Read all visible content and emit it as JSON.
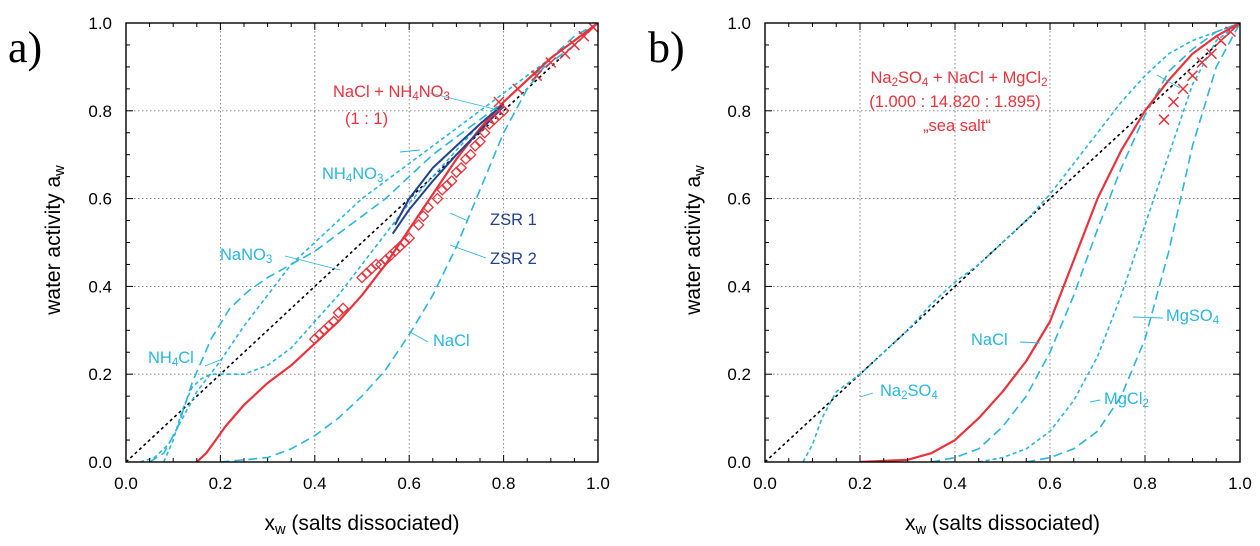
{
  "chart_data": [
    {
      "type": "line",
      "panel_label": "a)",
      "xlabel": {
        "main": "x",
        "sub": "w",
        "rest": "  (salts dissociated)"
      },
      "ylabel": {
        "main": "water activity a",
        "sub": "w"
      },
      "xlim": [
        0,
        1
      ],
      "ylim": [
        0,
        1
      ],
      "xticks": [
        "0.0",
        "0.2",
        "0.4",
        "0.6",
        "0.8",
        "1.0"
      ],
      "yticks": [
        "0.0",
        "0.2",
        "0.4",
        "0.6",
        "0.8",
        "1.0"
      ],
      "grid": true,
      "colors": {
        "mixture": "#e8323c",
        "single": "#29b6e0",
        "zsr": "#24418f",
        "ideal": "#000000"
      },
      "series": [
        {
          "kind": "ideal",
          "style": "dotted",
          "x": [
            0,
            1
          ],
          "y": [
            0,
            1
          ]
        },
        {
          "kind": "single",
          "style": "dash",
          "x": [
            0.03,
            0.06,
            0.09,
            0.12,
            0.15,
            0.2,
            0.25,
            0.3,
            0.35,
            0.4,
            0.45,
            0.5,
            0.55,
            0.6,
            0.65,
            0.7,
            0.75,
            0.8,
            0.85,
            0.9,
            0.95,
            1.0
          ],
          "y": [
            0,
            0.01,
            0.04,
            0.1,
            0.16,
            0.23,
            0.31,
            0.38,
            0.45,
            0.5,
            0.55,
            0.6,
            0.64,
            0.68,
            0.72,
            0.76,
            0.8,
            0.84,
            0.88,
            0.92,
            0.96,
            1.0
          ]
        },
        {
          "kind": "single",
          "style": "dash",
          "x": [
            0.05,
            0.08,
            0.11,
            0.14,
            0.18,
            0.22,
            0.26,
            0.3,
            0.35,
            0.4,
            0.45,
            0.5,
            0.55,
            0.6,
            0.65,
            0.7,
            0.75,
            0.8,
            0.85,
            0.9,
            0.95,
            1.0
          ],
          "y": [
            0,
            0.02,
            0.08,
            0.18,
            0.28,
            0.35,
            0.39,
            0.42,
            0.45,
            0.48,
            0.52,
            0.56,
            0.6,
            0.65,
            0.7,
            0.74,
            0.78,
            0.82,
            0.87,
            0.91,
            0.95,
            1.0
          ]
        },
        {
          "kind": "single",
          "style": "dash",
          "x": [
            0.08,
            0.1,
            0.12,
            0.14,
            0.16,
            0.18,
            0.2,
            0.25,
            0.3,
            0.35,
            0.4,
            0.45,
            0.5,
            0.55,
            0.6,
            0.65,
            0.7,
            0.75,
            0.8,
            0.85,
            0.9,
            0.95,
            1.0
          ],
          "y": [
            0,
            0.05,
            0.12,
            0.17,
            0.19,
            0.2,
            0.2,
            0.2,
            0.22,
            0.26,
            0.32,
            0.38,
            0.45,
            0.52,
            0.59,
            0.65,
            0.71,
            0.77,
            0.82,
            0.87,
            0.92,
            0.96,
            1.0
          ]
        },
        {
          "kind": "single",
          "style": "dash",
          "x": [
            0.2,
            0.3,
            0.35,
            0.4,
            0.45,
            0.5,
            0.55,
            0.6,
            0.65,
            0.7,
            0.75,
            0.8,
            0.85,
            0.9,
            0.95,
            1.0
          ],
          "y": [
            0,
            0.01,
            0.03,
            0.06,
            0.1,
            0.15,
            0.21,
            0.29,
            0.38,
            0.49,
            0.62,
            0.75,
            0.85,
            0.92,
            0.97,
            1.0
          ]
        },
        {
          "kind": "mixture",
          "style": "solid",
          "x": [
            0.15,
            0.17,
            0.19,
            0.21,
            0.25,
            0.3,
            0.35,
            0.4,
            0.45,
            0.5,
            0.55,
            0.6,
            0.65,
            0.7,
            0.75,
            0.8,
            0.85,
            0.9,
            0.95,
            1.0
          ],
          "y": [
            0,
            0.02,
            0.05,
            0.08,
            0.13,
            0.18,
            0.22,
            0.27,
            0.32,
            0.38,
            0.45,
            0.53,
            0.61,
            0.69,
            0.76,
            0.82,
            0.87,
            0.92,
            0.96,
            1.0
          ]
        },
        {
          "kind": "zsr",
          "style": "solid",
          "x": [
            0.565,
            0.6,
            0.65,
            0.7,
            0.75,
            0.8
          ],
          "y": [
            0.52,
            0.575,
            0.64,
            0.7,
            0.755,
            0.81
          ]
        },
        {
          "kind": "zsr",
          "style": "solid",
          "x": [
            0.57,
            0.6,
            0.65,
            0.7,
            0.75,
            0.8
          ],
          "y": [
            0.54,
            0.6,
            0.67,
            0.72,
            0.77,
            0.815
          ]
        }
      ],
      "markers": [
        {
          "kind": "diamond",
          "color": "#e8323c",
          "x": [
            0.4,
            0.41,
            0.42,
            0.43,
            0.44,
            0.45,
            0.46,
            0.5,
            0.51,
            0.52,
            0.53,
            0.54,
            0.55,
            0.56,
            0.57,
            0.58,
            0.59,
            0.6,
            0.62,
            0.63,
            0.64,
            0.66,
            0.67,
            0.68,
            0.69,
            0.7,
            0.71,
            0.72,
            0.73,
            0.74,
            0.75,
            0.76,
            0.77,
            0.78,
            0.79,
            0.8
          ],
          "y": [
            0.28,
            0.29,
            0.3,
            0.31,
            0.32,
            0.34,
            0.35,
            0.42,
            0.43,
            0.44,
            0.45,
            0.45,
            0.46,
            0.47,
            0.48,
            0.49,
            0.5,
            0.51,
            0.54,
            0.56,
            0.58,
            0.6,
            0.62,
            0.63,
            0.64,
            0.66,
            0.67,
            0.69,
            0.7,
            0.72,
            0.73,
            0.75,
            0.77,
            0.78,
            0.79,
            0.8
          ]
        },
        {
          "kind": "cross",
          "color": "#e8323c",
          "x": [
            0.79,
            0.83,
            0.87,
            0.9,
            0.93,
            0.95,
            0.97,
            0.99
          ],
          "y": [
            0.82,
            0.85,
            0.88,
            0.91,
            0.93,
            0.95,
            0.97,
            0.99
          ]
        }
      ],
      "annotations": [
        {
          "text": "NaCl + NH",
          "sub": "4",
          "rest": "NO",
          "sub2": "3",
          "color": "#e8323c"
        },
        {
          "text": "(1 : 1)",
          "color": "#e8323c"
        },
        {
          "text": "NH",
          "sub": "4",
          "rest": "NO",
          "sub2": "3",
          "color": "#29b6e0"
        },
        {
          "text": "ZSR 1",
          "color": "#24418f"
        },
        {
          "text": "ZSR 2",
          "color": "#24418f"
        },
        {
          "text": "NaNO",
          "sub": "3",
          "color": "#29b6e0"
        },
        {
          "text": "NaCl",
          "color": "#29b6e0"
        },
        {
          "text": "NH",
          "sub": "4",
          "rest": "Cl",
          "color": "#29b6e0"
        }
      ]
    },
    {
      "type": "line",
      "panel_label": "b)",
      "xlabel": {
        "main": "x",
        "sub": "w",
        "rest": "  (salts dissociated)"
      },
      "ylabel": {
        "main": "water activity a",
        "sub": "w"
      },
      "xlim": [
        0,
        1
      ],
      "ylim": [
        0,
        1
      ],
      "xticks": [
        "0.0",
        "0.2",
        "0.4",
        "0.6",
        "0.8",
        "1.0"
      ],
      "yticks": [
        "0.0",
        "0.2",
        "0.4",
        "0.6",
        "0.8",
        "1.0"
      ],
      "grid": true,
      "colors": {
        "mixture": "#e8323c",
        "single": "#29b6e0",
        "ideal": "#000000"
      },
      "series": [
        {
          "kind": "ideal",
          "style": "dotted",
          "x": [
            0,
            1
          ],
          "y": [
            0,
            1
          ]
        },
        {
          "kind": "single",
          "style": "dash",
          "x": [
            0.08,
            0.1,
            0.12,
            0.15,
            0.2,
            0.25,
            0.3,
            0.35,
            0.4,
            0.45,
            0.5,
            0.55,
            0.6,
            0.65,
            0.7,
            0.75,
            0.8,
            0.85,
            0.9,
            0.95,
            1.0
          ],
          "y": [
            0,
            0.04,
            0.1,
            0.16,
            0.2,
            0.25,
            0.3,
            0.36,
            0.41,
            0.45,
            0.5,
            0.55,
            0.61,
            0.68,
            0.75,
            0.82,
            0.88,
            0.93,
            0.96,
            0.98,
            1.0
          ]
        },
        {
          "kind": "single",
          "style": "dash",
          "x": [
            0.35,
            0.4,
            0.45,
            0.5,
            0.55,
            0.6,
            0.65,
            0.7,
            0.75,
            0.8,
            0.85,
            0.9,
            0.95,
            1.0
          ],
          "y": [
            0,
            0.01,
            0.03,
            0.08,
            0.15,
            0.25,
            0.38,
            0.53,
            0.67,
            0.79,
            0.89,
            0.94,
            0.98,
            1.0
          ]
        },
        {
          "kind": "single",
          "style": "dash",
          "x": [
            0.45,
            0.5,
            0.55,
            0.6,
            0.65,
            0.7,
            0.75,
            0.8,
            0.85,
            0.9,
            0.95,
            1.0
          ],
          "y": [
            0,
            0.01,
            0.03,
            0.07,
            0.14,
            0.24,
            0.38,
            0.54,
            0.7,
            0.86,
            0.96,
            1.0
          ]
        },
        {
          "kind": "single",
          "style": "dash",
          "x": [
            0.55,
            0.6,
            0.65,
            0.7,
            0.75,
            0.8,
            0.85,
            0.9,
            0.95,
            1.0
          ],
          "y": [
            0,
            0.01,
            0.03,
            0.07,
            0.15,
            0.28,
            0.48,
            0.72,
            0.9,
            1.0
          ]
        },
        {
          "kind": "mixture",
          "style": "solid",
          "x": [
            0.2,
            0.3,
            0.35,
            0.4,
            0.45,
            0.5,
            0.55,
            0.6,
            0.65,
            0.7,
            0.75,
            0.8,
            0.85,
            0.9,
            0.95,
            1.0
          ],
          "y": [
            0,
            0.005,
            0.02,
            0.05,
            0.1,
            0.16,
            0.23,
            0.32,
            0.46,
            0.6,
            0.71,
            0.8,
            0.87,
            0.93,
            0.97,
            1.0
          ]
        }
      ],
      "markers": [
        {
          "kind": "cross",
          "color": "#e8323c",
          "x": [
            0.84,
            0.86,
            0.88,
            0.9,
            0.92,
            0.94,
            0.96,
            0.98,
            1.0
          ],
          "y": [
            0.78,
            0.82,
            0.85,
            0.88,
            0.91,
            0.93,
            0.96,
            0.98,
            1.0
          ]
        }
      ],
      "annotations": [
        {
          "text": "Na",
          "sub": "2",
          "rest": "SO",
          "sub2": "4",
          "tail": " + NaCl + MgCl",
          "sub3": "2",
          "color": "#e8323c"
        },
        {
          "text": "(1.000 : 14.820 : 1.895)",
          "color": "#e8323c"
        },
        {
          "text": "„sea salt“",
          "color": "#e8323c"
        },
        {
          "text": "MgSO",
          "sub": "4",
          "color": "#29b6e0"
        },
        {
          "text": "NaCl",
          "color": "#29b6e0"
        },
        {
          "text": "Na",
          "sub": "2",
          "rest": "SO",
          "sub2": "4",
          "color": "#29b6e0"
        },
        {
          "text": "MgCl",
          "sub": "2",
          "color": "#29b6e0"
        }
      ]
    }
  ]
}
